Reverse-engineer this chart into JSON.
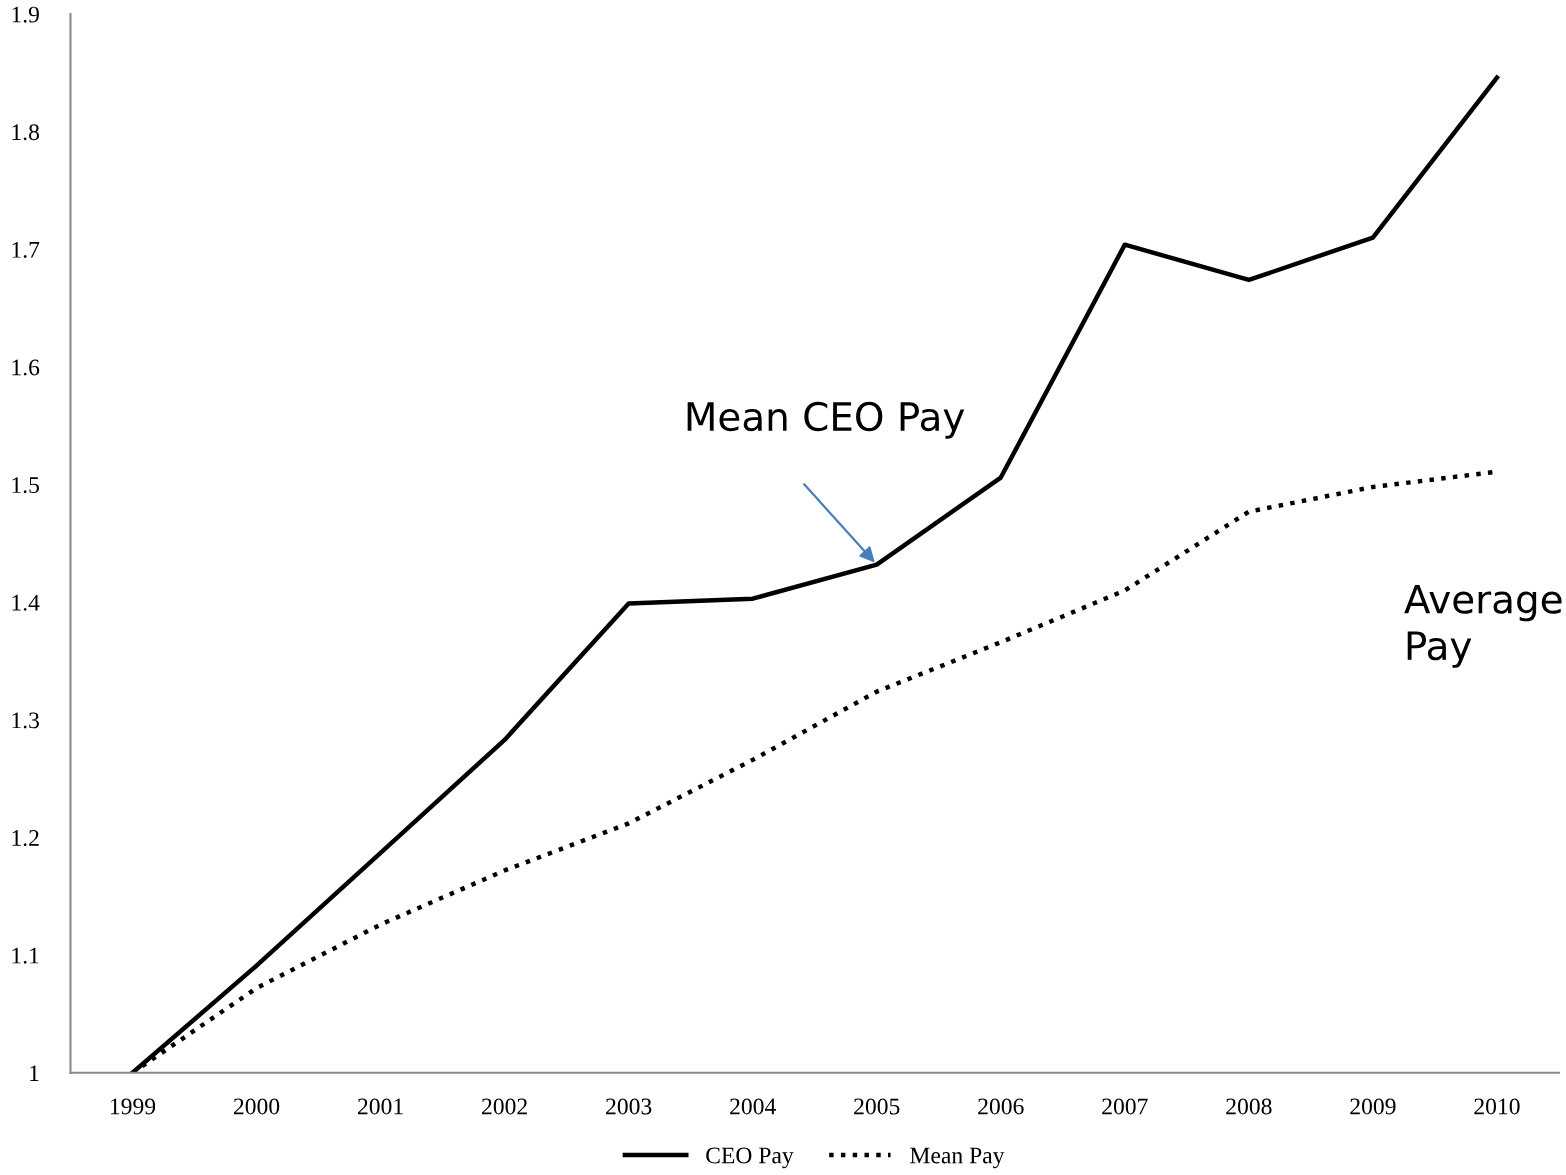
{
  "chart_data": {
    "type": "line",
    "categories": [
      "1999",
      "2000",
      "2001",
      "2002",
      "2003",
      "2004",
      "2005",
      "2006",
      "2007",
      "2008",
      "2009",
      "2010"
    ],
    "series": [
      {
        "name": "CEO Pay",
        "color": "#000000",
        "line_style": "solid",
        "values": [
          1.0,
          1.091,
          1.187,
          1.283,
          1.399,
          1.403,
          1.432,
          1.506,
          1.704,
          1.674,
          1.71,
          1.846
        ]
      },
      {
        "name": "Mean Pay",
        "color": "#000000",
        "line_style": "dotted",
        "values": [
          1.0,
          1.072,
          1.126,
          1.172,
          1.212,
          1.266,
          1.324,
          1.366,
          1.41,
          1.477,
          1.498,
          1.511
        ]
      }
    ],
    "ylim": [
      1,
      1.9
    ],
    "yticks": [
      1,
      1.1,
      1.2,
      1.3,
      1.4,
      1.5,
      1.6,
      1.7,
      1.8,
      1.9
    ],
    "grid": false,
    "legend": "bottom",
    "marker": "none",
    "annotations": [
      {
        "text": "Mean CEO Pay",
        "x": "2005",
        "y": 1.432
      },
      "Average\nPay"
    ]
  }
}
